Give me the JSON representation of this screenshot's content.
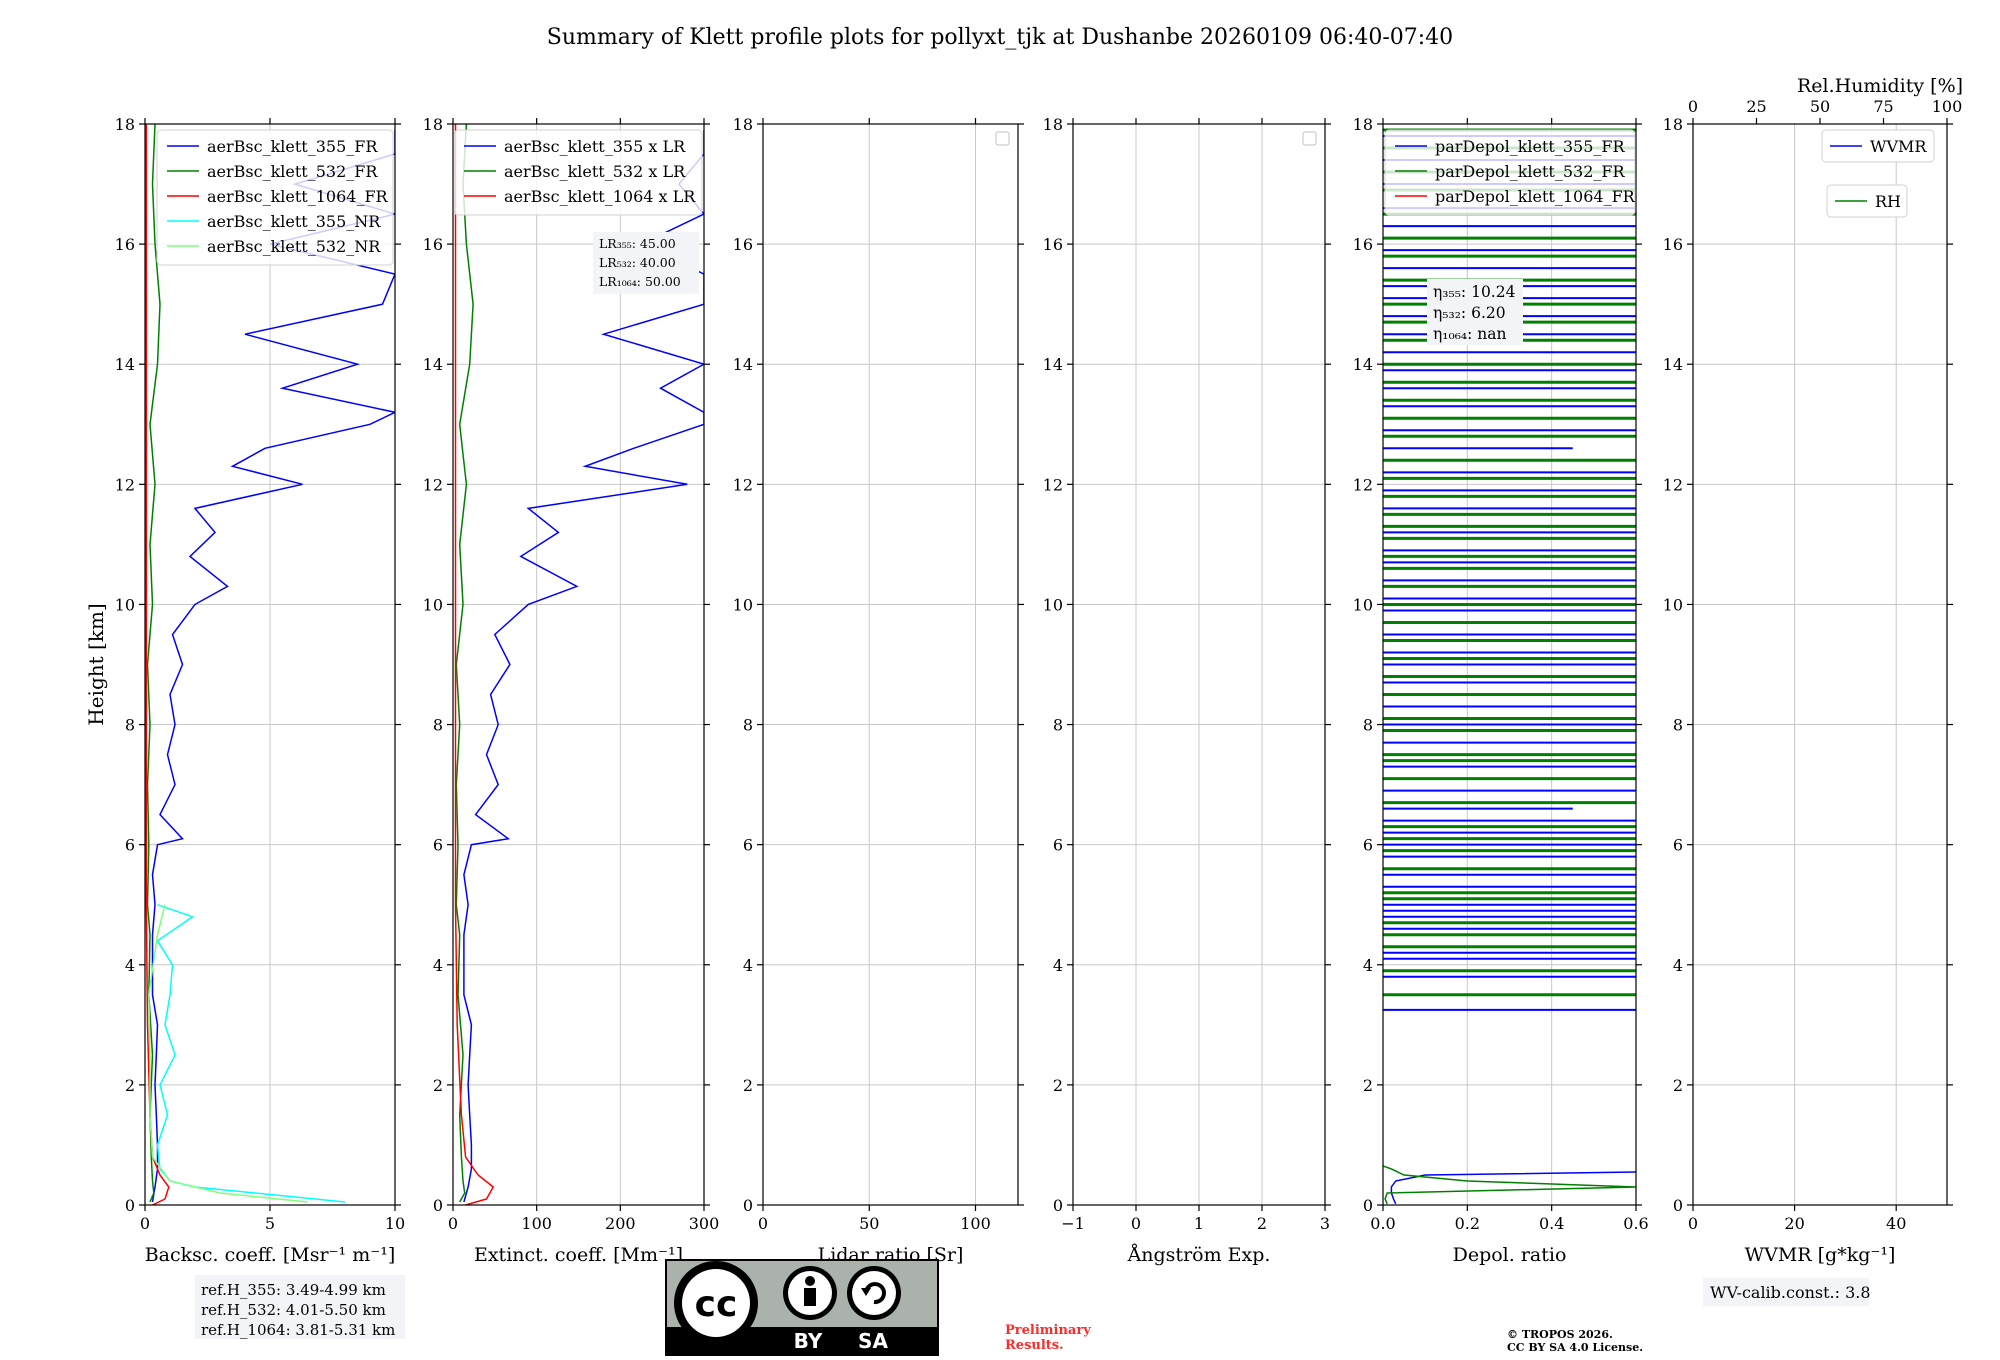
{
  "title": "Summary of Klett profile plots for pollyxt_tjk at Dushanbe 20260109 06:40-07:40",
  "colors": {
    "c355": "#0000ff",
    "c532": "#008000",
    "c1064": "#ff0000",
    "c355nr": "#00ffff",
    "c532nr": "#7fff7f",
    "rh": "#008000",
    "prelim": "#ff0000",
    "panel_bg": "#f2f4f8"
  },
  "notes": {
    "refH": [
      "ref.H_355: 3.49-4.99 km",
      "ref.H_532: 4.01-5.50 km",
      "ref.H_1064: 3.81-5.31 km"
    ],
    "wv_calib": "WV-calib.const.: 3.8",
    "prelim": [
      "Preliminary",
      "Results."
    ],
    "copyright": [
      "© TROPOS 2026.",
      "CC BY SA 4.0 License."
    ],
    "cc_by": "BY",
    "cc_sa": "SA",
    "cc_text": "cc"
  },
  "chart_data": [
    {
      "type": "line",
      "title": "",
      "xlabel": "Backsc. coeff. [Msr⁻¹ m⁻¹]",
      "ylabel": "Height [km]",
      "xlim": [
        0,
        10
      ],
      "ylim": [
        0,
        18
      ],
      "xticks": [
        0,
        5,
        10
      ],
      "xtick_labels": [
        "0",
        "5",
        "10"
      ],
      "yticks": [
        0,
        2,
        4,
        6,
        8,
        10,
        12,
        14,
        16,
        18
      ],
      "ytick_labels": [
        "0",
        "2",
        "4",
        "6",
        "8",
        "10",
        "12",
        "14",
        "16",
        "18"
      ],
      "grid": true,
      "legend": "upper-right",
      "series": [
        {
          "name": "aerBsc_klett_355_FR",
          "color": "#0000ff",
          "h": [
            0.05,
            0.3,
            0.6,
            1,
            1.5,
            2,
            2.5,
            3,
            3.5,
            4,
            4.5,
            5,
            5.5,
            6,
            6.1,
            6.5,
            7,
            7.5,
            8,
            8.5,
            9,
            9.5,
            10,
            10.3,
            10.8,
            11.2,
            11.6,
            12,
            12.3,
            12.6,
            13,
            13.2,
            13.6,
            14,
            14.5,
            15,
            15.5,
            16,
            16.5,
            17,
            17.5,
            17.9
          ],
          "x": [
            0.3,
            0.4,
            0.5,
            0.5,
            0.45,
            0.4,
            0.45,
            0.5,
            0.3,
            0.3,
            0.3,
            0.4,
            0.3,
            0.5,
            1.5,
            0.6,
            1.2,
            0.9,
            1.2,
            1.0,
            1.5,
            1.1,
            2.0,
            3.3,
            1.8,
            2.8,
            2.0,
            6.3,
            3.5,
            4.8,
            9.0,
            10.0,
            5.5,
            8.5,
            4.0,
            9.5,
            10.0,
            5.0,
            10.0,
            6.0,
            10.0,
            10.0
          ]
        },
        {
          "name": "aerBsc_klett_532_FR",
          "color": "#008000",
          "h": [
            0.05,
            0.2,
            0.4,
            0.8,
            1.5,
            2.5,
            3.5,
            4.5,
            5,
            6,
            7,
            8,
            9,
            10,
            11,
            12,
            12.5,
            13,
            14,
            15,
            16,
            17,
            18
          ],
          "x": [
            0.2,
            0.35,
            0.3,
            0.25,
            0.2,
            0.3,
            0.15,
            0.2,
            0.1,
            0.15,
            0.1,
            0.2,
            0.1,
            0.3,
            0.2,
            0.4,
            0.3,
            0.2,
            0.5,
            0.6,
            0.4,
            0.3,
            0.4
          ]
        },
        {
          "name": "aerBsc_klett_1064_FR",
          "color": "#ff0000",
          "h": [
            0,
            0.1,
            0.3,
            0.5,
            0.8,
            1.5,
            3,
            5,
            8,
            12,
            18
          ],
          "x": [
            0.3,
            0.8,
            0.95,
            0.6,
            0.3,
            0.2,
            0.1,
            0.05,
            0.05,
            0.05,
            0.05
          ]
        },
        {
          "name": "aerBsc_klett_355_NR",
          "color": "#00ffff",
          "h": [
            0.05,
            0.3,
            0.4,
            0.6,
            1,
            1.5,
            2,
            2.5,
            3,
            3.5,
            4,
            4.4,
            4.8,
            5
          ],
          "x": [
            8.0,
            2.0,
            1.0,
            0.6,
            0.5,
            0.9,
            0.6,
            1.2,
            0.8,
            1.0,
            1.1,
            0.5,
            1.9,
            0.5
          ]
        },
        {
          "name": "aerBsc_klett_532_NR",
          "color": "#7fff7f",
          "h": [
            0.05,
            0.2,
            0.4,
            0.8,
            1.5,
            2.5,
            3.5,
            4.5,
            5
          ],
          "x": [
            6.5,
            3.0,
            1.0,
            0.3,
            0.2,
            0.2,
            0.15,
            0.5,
            0.8
          ]
        }
      ]
    },
    {
      "type": "line",
      "xlabel": "Extinct. coeff. [Mm⁻¹]",
      "xlim": [
        0,
        300
      ],
      "ylim": [
        0,
        18
      ],
      "xticks": [
        0,
        100,
        200,
        300
      ],
      "xtick_labels": [
        "0",
        "100",
        "200",
        "300"
      ],
      "yticks": [
        0,
        2,
        4,
        6,
        8,
        10,
        12,
        14,
        16,
        18
      ],
      "ytick_labels": [
        "0",
        "2",
        "4",
        "6",
        "8",
        "10",
        "12",
        "14",
        "16",
        "18"
      ],
      "grid": true,
      "legend": "upper-right",
      "lidar_ratios": [
        "LR₃₅₅: 45.00",
        "LR₅₃₂: 40.00",
        "LR₁₀₆₄: 50.00"
      ],
      "series": [
        {
          "name": "aerBsc_klett_355 x LR",
          "color": "#0000ff",
          "h": [
            0.05,
            0.3,
            0.6,
            1,
            1.5,
            2,
            2.5,
            3,
            3.5,
            4,
            4.5,
            5,
            5.5,
            6,
            6.1,
            6.5,
            7,
            7.5,
            8,
            8.5,
            9,
            9.5,
            10,
            10.3,
            10.8,
            11.2,
            11.6,
            12,
            12.3,
            12.6,
            13,
            13.2,
            13.6,
            14,
            14.5,
            15,
            15.5,
            16,
            16.5,
            17,
            17.5,
            17.9
          ],
          "x": [
            13,
            18,
            22,
            22,
            20,
            18,
            20,
            22,
            13,
            13,
            13,
            18,
            13,
            22,
            66,
            27,
            54,
            40,
            54,
            45,
            68,
            50,
            90,
            148,
            81,
            126,
            90,
            280,
            158,
            216,
            300,
            300,
            248,
            300,
            180,
            300,
            300,
            225,
            300,
            270,
            300,
            300
          ]
        },
        {
          "name": "aerBsc_klett_532 x LR",
          "color": "#008000",
          "h": [
            0.05,
            0.2,
            0.4,
            0.8,
            1.5,
            2.5,
            3.5,
            4.5,
            5,
            6,
            7,
            8,
            9,
            10,
            11,
            12,
            12.5,
            13,
            14,
            15,
            16,
            17,
            18
          ],
          "x": [
            8,
            14,
            12,
            10,
            8,
            12,
            6,
            8,
            4,
            6,
            4,
            8,
            4,
            12,
            8,
            16,
            12,
            8,
            20,
            24,
            16,
            12,
            16
          ]
        },
        {
          "name": "aerBsc_klett_1064 x LR",
          "color": "#ff0000",
          "h": [
            0,
            0.1,
            0.3,
            0.5,
            0.8,
            1.5,
            3,
            5,
            8,
            12,
            18
          ],
          "x": [
            15,
            40,
            48,
            30,
            15,
            10,
            5,
            3,
            3,
            3,
            3
          ]
        }
      ]
    },
    {
      "type": "line",
      "xlabel": "Lidar ratio [Sr]",
      "xlim": [
        0,
        120
      ],
      "ylim": [
        0,
        18
      ],
      "xticks": [
        0,
        50,
        100
      ],
      "xtick_labels": [
        "0",
        "50",
        "100"
      ],
      "yticks": [
        0,
        2,
        4,
        6,
        8,
        10,
        12,
        14,
        16,
        18
      ],
      "ytick_labels": [
        "0",
        "2",
        "4",
        "6",
        "8",
        "10",
        "12",
        "14",
        "16",
        "18"
      ],
      "grid": true,
      "legend": "upper-right",
      "series": []
    },
    {
      "type": "line",
      "xlabel": "Ångström Exp.",
      "xlim": [
        -1,
        3
      ],
      "ylim": [
        0,
        18
      ],
      "xticks": [
        -1,
        0,
        1,
        2,
        3
      ],
      "xtick_labels": [
        "−1",
        "0",
        "1",
        "2",
        "3"
      ],
      "yticks": [
        0,
        2,
        4,
        6,
        8,
        10,
        12,
        14,
        16,
        18
      ],
      "ytick_labels": [
        "0",
        "2",
        "4",
        "6",
        "8",
        "10",
        "12",
        "14",
        "16",
        "18"
      ],
      "grid": true,
      "legend": "upper-right",
      "series": []
    },
    {
      "type": "line",
      "xlabel": "Depol. ratio",
      "xlim": [
        0,
        0.6
      ],
      "ylim": [
        0,
        18
      ],
      "xticks": [
        0,
        0.2,
        0.4,
        0.6
      ],
      "xtick_labels": [
        "0.0",
        "0.2",
        "0.4",
        "0.6"
      ],
      "yticks": [
        0,
        2,
        4,
        6,
        8,
        10,
        12,
        14,
        16,
        18
      ],
      "ytick_labels": [
        "0",
        "2",
        "4",
        "6",
        "8",
        "10",
        "12",
        "14",
        "16",
        "18"
      ],
      "grid": true,
      "legend": "upper-left",
      "eta": [
        "η₃₅₅: 10.24",
        "η₅₃₂: 6.20",
        "η₁₀₆₄: nan"
      ],
      "series": [
        {
          "name": "parDepol_klett_355_FR",
          "color": "#0000ff",
          "h": [
            0.02,
            0.1,
            0.2,
            0.3,
            0.4,
            0.5,
            0.55
          ],
          "x": [
            0.03,
            0.025,
            0.02,
            0.02,
            0.03,
            0.1,
            0.6
          ]
        },
        {
          "name": "parDepol_klett_532_FR",
          "color": "#008000",
          "h": [
            0.02,
            0.1,
            0.2,
            0.3,
            0.4,
            0.5,
            0.6,
            0.65
          ],
          "x": [
            0.01,
            0.005,
            0.01,
            0.6,
            0.2,
            0.05,
            0.02,
            0.0
          ]
        },
        {
          "name": "parDepol_klett_1064_FR",
          "color": "#ff0000",
          "h": [],
          "x": []
        }
      ],
      "noise_355_h": [
        3.25,
        3.8,
        4.1,
        4.2,
        4.6,
        4.8,
        4.9,
        5.0,
        5.3,
        5.5,
        5.8,
        6.0,
        6.2,
        6.4,
        6.6,
        6.9,
        7.3,
        7.7,
        8.0,
        8.3,
        8.7,
        9.0,
        9.2,
        9.5,
        9.9,
        10.1,
        10.4,
        10.7,
        10.9,
        11.2,
        11.6,
        11.9,
        12.2,
        12.6,
        12.9,
        13.3,
        13.6,
        13.9,
        14.2,
        14.5,
        14.8,
        15.1,
        15.3,
        15.6,
        15.9,
        16.3,
        16.6,
        17.0,
        17.4,
        17.8
      ],
      "noise_355_x": [
        0.6,
        0.6,
        0.6,
        0.6,
        0.6,
        0.6,
        0.6,
        0.6,
        0.6,
        0.6,
        0.6,
        0.6,
        0.6,
        0.6,
        0.45,
        0.6,
        0.6,
        0.6,
        0.6,
        0.6,
        0.6,
        0.6,
        0.6,
        0.6,
        0.6,
        0.6,
        0.6,
        0.6,
        0.6,
        0.6,
        0.6,
        0.6,
        0.6,
        0.45,
        0.6,
        0.6,
        0.6,
        0.6,
        0.6,
        0.6,
        0.6,
        0.6,
        0.6,
        0.6,
        0.6,
        0.6,
        0.6,
        0.6,
        0.6,
        0.6
      ],
      "noise_532_h": [
        3.5,
        3.9,
        4.3,
        4.5,
        4.7,
        5.1,
        5.2,
        5.6,
        5.9,
        6.1,
        6.3,
        6.7,
        7.1,
        7.4,
        7.5,
        7.9,
        8.1,
        8.5,
        8.8,
        9.1,
        9.4,
        9.7,
        10.0,
        10.3,
        10.6,
        10.8,
        11.1,
        11.3,
        11.5,
        11.8,
        12.1,
        12.4,
        12.8,
        13.1,
        13.4,
        13.7,
        14.0,
        14.4,
        14.7,
        15.0,
        15.4,
        15.8,
        16.1,
        16.5,
        16.9,
        17.2,
        17.6,
        17.9
      ],
      "noise_532_x": [
        0.6,
        0.6,
        0.6,
        0.6,
        0.6,
        0.6,
        0.6,
        0.6,
        0.6,
        0.6,
        0.6,
        0.6,
        0.6,
        0.6,
        0.6,
        0.6,
        0.6,
        0.6,
        0.6,
        0.6,
        0.6,
        0.6,
        0.6,
        0.6,
        0.6,
        0.6,
        0.6,
        0.6,
        0.6,
        0.6,
        0.6,
        0.6,
        0.6,
        0.6,
        0.6,
        0.6,
        0.6,
        0.6,
        0.6,
        0.6,
        0.6,
        0.6,
        0.6,
        0.6,
        0.6,
        0.6,
        0.6,
        0.6
      ]
    },
    {
      "type": "line",
      "xlabel": "WVMR [g*kg⁻¹]",
      "xlim": [
        0,
        50
      ],
      "ylim": [
        0,
        18
      ],
      "xticks": [
        0,
        20,
        40
      ],
      "xtick_labels": [
        "0",
        "20",
        "40"
      ],
      "yticks": [
        0,
        2,
        4,
        6,
        8,
        10,
        12,
        14,
        16,
        18
      ],
      "ytick_labels": [
        "0",
        "2",
        "4",
        "6",
        "8",
        "10",
        "12",
        "14",
        "16",
        "18"
      ],
      "grid": true,
      "legend": "upper-right",
      "top_xlabel": "Rel.Humidity [%]",
      "top_xlim": [
        0,
        100
      ],
      "top_xticks": [
        0,
        25,
        50,
        75,
        100
      ],
      "top_xtick_labels": [
        "0",
        "25",
        "50",
        "75",
        "100"
      ],
      "series": [
        {
          "name": "WVMR",
          "color": "#0000ff",
          "h": [],
          "x": []
        },
        {
          "name": "RH",
          "color": "#008000",
          "h": [],
          "x": []
        }
      ]
    }
  ]
}
